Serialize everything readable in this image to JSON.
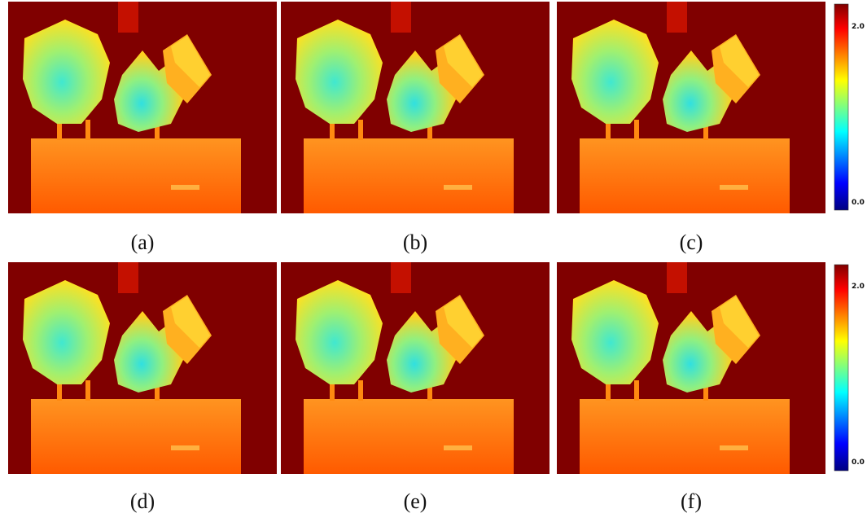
{
  "panels": [
    {
      "caption": "(a)"
    },
    {
      "caption": "(b)"
    },
    {
      "caption": "(c)"
    },
    {
      "caption": "(d)"
    },
    {
      "caption": "(e)"
    },
    {
      "caption": "(f)"
    }
  ],
  "colorbars": [
    {
      "top": "2.0",
      "bottom": "0.0"
    },
    {
      "top": "2.0",
      "bottom": "0.0"
    }
  ]
}
